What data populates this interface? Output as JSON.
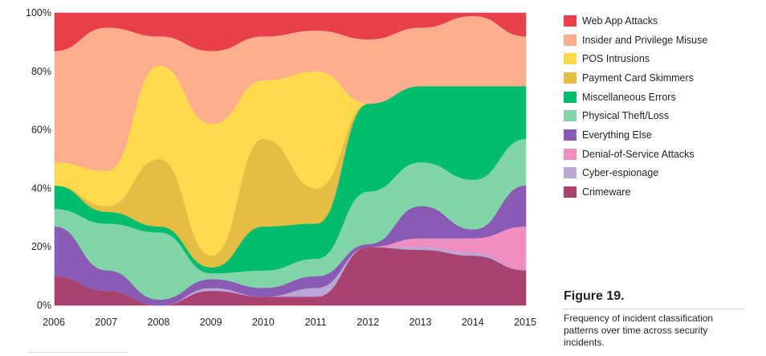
{
  "chart_data": {
    "type": "area",
    "subtype": "stacked-100-percent-streamgraph",
    "x": [
      "2006",
      "2007",
      "2008",
      "2009",
      "2010",
      "2011",
      "2012",
      "2013",
      "2014",
      "2015"
    ],
    "ylim": [
      0,
      100
    ],
    "yticks": [
      0,
      20,
      40,
      60,
      80,
      100
    ],
    "ytick_labels": [
      "0%",
      "20%",
      "40%",
      "60%",
      "80%",
      "100%"
    ],
    "xlabel": "",
    "ylabel": "",
    "grid": false,
    "legend_position": "right",
    "series": [
      {
        "name": "Crimeware",
        "color": "#a8426e",
        "values": [
          10,
          5,
          0,
          5,
          3,
          3,
          20,
          19,
          17,
          12
        ]
      },
      {
        "name": "Cyber-espionage",
        "color": "#bba6d8",
        "values": [
          0,
          0,
          0,
          1,
          0,
          3,
          0,
          1,
          1,
          0
        ]
      },
      {
        "name": "Denial-of-Service Attacks",
        "color": "#f08fbf",
        "values": [
          0,
          0,
          0,
          0,
          0,
          0,
          0,
          3,
          5,
          15
        ]
      },
      {
        "name": "Everything Else",
        "color": "#8a5bb5",
        "values": [
          17,
          7,
          2,
          3,
          3,
          4,
          1,
          11,
          3,
          14
        ]
      },
      {
        "name": "Physical Theft/Loss",
        "color": "#82d5a8",
        "values": [
          6,
          16,
          23,
          2,
          6,
          6,
          18,
          15,
          17,
          16
        ]
      },
      {
        "name": "Miscellaneous Errors",
        "color": "#00bd6e",
        "values": [
          8,
          4,
          2,
          2,
          15,
          12,
          30,
          26,
          32,
          18
        ]
      },
      {
        "name": "Payment Card Skimmers",
        "color": "#e4bd45",
        "values": [
          0,
          2,
          23,
          4,
          30,
          12,
          0,
          0,
          0,
          0
        ]
      },
      {
        "name": "POS Intrusions",
        "color": "#ffd94e",
        "values": [
          8,
          12,
          32,
          45,
          20,
          40,
          0,
          0,
          0,
          0
        ]
      },
      {
        "name": "Insider and Privilege Misuse",
        "color": "#fdae8f",
        "values": [
          38,
          49,
          10,
          25,
          15,
          14,
          22,
          20,
          24,
          17
        ]
      },
      {
        "name": "Web App Attacks",
        "color": "#e8404a",
        "values": [
          13,
          5,
          8,
          13,
          8,
          6,
          9,
          5,
          1,
          8
        ]
      }
    ],
    "legend_order": [
      "Web App Attacks",
      "Insider and Privilege Misuse",
      "POS Intrusions",
      "Payment Card Skimmers",
      "Miscellaneous Errors",
      "Physical Theft/Loss",
      "Everything Else",
      "Denial-of-Service Attacks",
      "Cyber-espionage",
      "Crimeware"
    ]
  },
  "figure": {
    "title": "Figure 19.",
    "caption": "Frequency of incident classification patterns over time across security incidents."
  }
}
